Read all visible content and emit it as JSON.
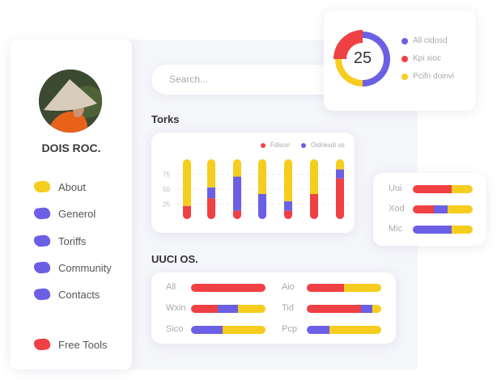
{
  "colors": {
    "red": "#ef4044",
    "blue": "#6b5fe6",
    "yellow": "#f5cd1e"
  },
  "profile": {
    "name": "DOIS ROC."
  },
  "sidebar": {
    "items": [
      {
        "label": "About",
        "color": "#f5cd1e",
        "icon": "yellow-blob-icon"
      },
      {
        "label": "Generol",
        "color": "#6b5fe6",
        "icon": "blue-blob-icon"
      },
      {
        "label": "Toriffs",
        "color": "#6b5fe6",
        "icon": "blue-blob-icon"
      },
      {
        "label": "Community",
        "color": "#6b5fe6",
        "icon": "blue-blob-icon"
      },
      {
        "label": "Contacts",
        "color": "#6b5fe6",
        "icon": "blue-blob-icon"
      },
      {
        "label": "Free Tools",
        "color": "#ef4044",
        "icon": "red-blob-icon"
      }
    ]
  },
  "search": {
    "placeholder": "Search..."
  },
  "torks": {
    "title": "Torks"
  },
  "uuci": {
    "title": "UUCI OS."
  },
  "chart_data": [
    {
      "type": "bar",
      "stacked": true,
      "legend": [
        "Fdison",
        "Oidnksdi os"
      ],
      "legend_placement": "top-right",
      "yticks": [
        25,
        50,
        75
      ],
      "ylim": [
        0,
        100
      ],
      "grid": true,
      "bars": [
        {
          "red": 22,
          "blue": 0,
          "yellow": 78
        },
        {
          "red": 35,
          "blue": 18,
          "yellow": 47
        },
        {
          "red": 14,
          "blue": 57,
          "yellow": 29
        },
        {
          "red": 0,
          "blue": 42,
          "yellow": 58
        },
        {
          "red": 14,
          "blue": 16,
          "yellow": 70
        },
        {
          "red": 42,
          "blue": 0,
          "yellow": 58
        },
        {
          "red": 68,
          "blue": 15,
          "yellow": 17
        }
      ]
    },
    {
      "type": "pie",
      "donut": true,
      "center_label": "25",
      "slices": [
        {
          "name": "All cidosd",
          "value": 50,
          "color": "#6b5fe6"
        },
        {
          "name": "Kpi xioc",
          "value": 25,
          "color": "#ef4044"
        },
        {
          "name": "Pcifn doinvi",
          "value": 25,
          "color": "#f5cd1e"
        }
      ]
    },
    {
      "type": "bar",
      "orientation": "horizontal",
      "stacked": true,
      "rows": [
        {
          "label": "Uui",
          "red": 65,
          "blue": 0,
          "yellow": 35
        },
        {
          "label": "Xod",
          "red": 35,
          "blue": 23,
          "yellow": 42
        },
        {
          "label": "Mic",
          "red": 0,
          "blue": 65,
          "yellow": 35
        }
      ]
    },
    {
      "type": "bar",
      "orientation": "horizontal",
      "stacked": true,
      "rows": [
        {
          "label": "All",
          "red": 100,
          "blue": 0,
          "yellow": 0
        },
        {
          "label": "Aio",
          "red": 50,
          "blue": 0,
          "yellow": 50
        },
        {
          "label": "Wxin",
          "red": 36,
          "blue": 27,
          "yellow": 37
        },
        {
          "label": "Tid",
          "red": 73,
          "blue": 15,
          "yellow": 12
        },
        {
          "label": "Sico",
          "red": 0,
          "blue": 42,
          "yellow": 58
        },
        {
          "label": "Pcp",
          "red": 0,
          "blue": 30,
          "yellow": 70
        }
      ]
    }
  ]
}
